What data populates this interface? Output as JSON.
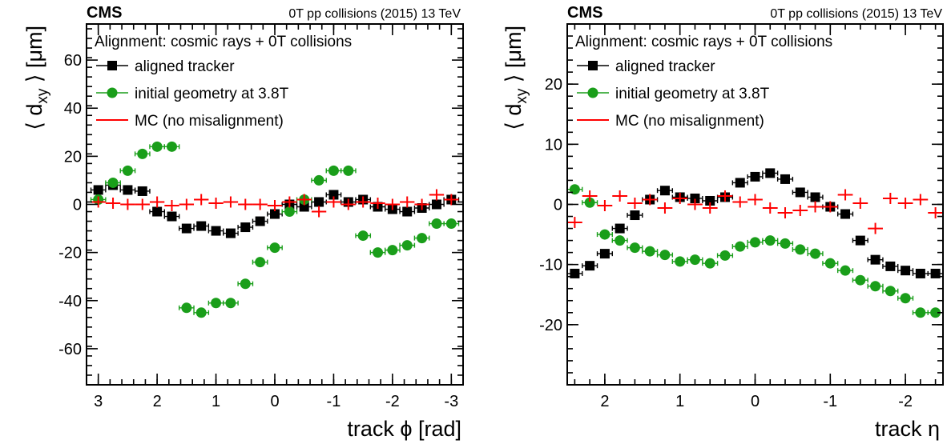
{
  "chart_data": [
    {
      "type": "scatter",
      "experiment": "CMS",
      "header": "0T pp collisions (2015) 13 TeV",
      "legend_title": "Alignment: cosmic rays + 0T collisions",
      "xlabel": "track ϕ [rad]",
      "ylabel": "⟨ d",
      "ylabel_sub": "xy",
      "ylabel_suffix": " ⟩ [μm]",
      "xlim": [
        3.2,
        -3.2
      ],
      "ylim": [
        -75,
        75
      ],
      "xticks": [
        3,
        2,
        1,
        0,
        -1,
        -2,
        -3
      ],
      "xtick_labels": [
        "3",
        "2",
        "1",
        "0",
        "-1",
        "-2",
        "-3"
      ],
      "yticks": [
        -60,
        -40,
        -20,
        0,
        20,
        40,
        60
      ],
      "ytick_labels": [
        "-60",
        "-40",
        "-20",
        "0",
        "20",
        "40",
        "60"
      ],
      "legend_position": "top-left",
      "series": [
        {
          "name": "aligned tracker",
          "color": "#000000",
          "marker": "square",
          "x": [
            3.0,
            2.75,
            2.5,
            2.25,
            2.0,
            1.75,
            1.5,
            1.25,
            1.0,
            0.75,
            0.5,
            0.25,
            0.0,
            -0.25,
            -0.5,
            -0.75,
            -1.0,
            -1.25,
            -1.5,
            -1.75,
            -2.0,
            -2.25,
            -2.5,
            -2.75,
            -3.0
          ],
          "y": [
            6,
            8,
            6,
            5.5,
            -3,
            -5,
            -10,
            -9,
            -11,
            -12,
            -9.5,
            -7,
            -4,
            0,
            -1,
            1,
            4,
            1,
            2,
            -1,
            -2,
            -3,
            -1.5,
            0,
            2
          ]
        },
        {
          "name": "initial geometry at 3.8T",
          "color": "#1a9e1a",
          "marker": "circle",
          "x": [
            3.0,
            2.75,
            2.5,
            2.25,
            2.0,
            1.75,
            1.5,
            1.25,
            1.0,
            0.75,
            0.5,
            0.25,
            0.0,
            -0.25,
            -0.5,
            -0.75,
            -1.0,
            -1.25,
            -1.5,
            -1.75,
            -2.0,
            -2.25,
            -2.5,
            -2.75,
            -3.0
          ],
          "y": [
            2,
            9,
            14,
            21,
            24,
            24,
            -43,
            -45,
            -41,
            -41,
            -33,
            -24,
            -18,
            -3,
            2,
            10,
            14,
            14,
            -13,
            -20,
            -19,
            -17,
            -14,
            -8,
            -8
          ]
        },
        {
          "name": "MC (no misalignment)",
          "color": "#ff0000",
          "marker": "cross",
          "x": [
            3.0,
            2.75,
            2.5,
            2.25,
            2.0,
            1.75,
            1.5,
            1.25,
            1.0,
            0.75,
            0.5,
            0.25,
            0.0,
            -0.25,
            -0.5,
            -0.75,
            -1.0,
            -1.25,
            -1.5,
            -1.75,
            -2.0,
            -2.25,
            -2.5,
            -2.75,
            -3.0
          ],
          "y": [
            1,
            0.5,
            0,
            0,
            1,
            -0.5,
            0,
            2,
            0.5,
            1,
            0,
            0,
            -0.5,
            1,
            2,
            -3,
            1,
            0,
            1,
            0.5,
            0,
            1,
            0,
            4,
            2
          ]
        }
      ]
    },
    {
      "type": "scatter",
      "experiment": "CMS",
      "header": "0T pp collisions (2015) 13 TeV",
      "legend_title": "Alignment: cosmic rays + 0T collisions",
      "xlabel": "track η",
      "ylabel": "⟨ d",
      "ylabel_sub": "xy",
      "ylabel_suffix": " ⟩ [μm]",
      "xlim": [
        2.5,
        -2.5
      ],
      "ylim": [
        -30,
        30
      ],
      "xticks": [
        2,
        1,
        0,
        -1,
        -2
      ],
      "xtick_labels": [
        "2",
        "1",
        "0",
        "-1",
        "-2"
      ],
      "yticks": [
        -20,
        -10,
        0,
        10,
        20
      ],
      "ytick_labels": [
        "-20",
        "-10",
        "0",
        "10",
        "20"
      ],
      "legend_position": "top-left",
      "series": [
        {
          "name": "aligned tracker",
          "color": "#000000",
          "marker": "square",
          "x": [
            2.4,
            2.2,
            2.0,
            1.8,
            1.6,
            1.4,
            1.2,
            1.0,
            0.8,
            0.6,
            0.4,
            0.2,
            0.0,
            -0.2,
            -0.4,
            -0.6,
            -0.8,
            -1.0,
            -1.2,
            -1.4,
            -1.6,
            -1.8,
            -2.0,
            -2.2,
            -2.4
          ],
          "y": [
            -11.5,
            -10.2,
            -8.2,
            -4,
            -1.8,
            0.8,
            2.3,
            1.2,
            1.0,
            0.6,
            1.2,
            3.6,
            4.6,
            5.2,
            4.2,
            2.0,
            1.2,
            -0.4,
            -1.6,
            -6.0,
            -9.2,
            -10.3,
            -11.0,
            -11.5,
            -11.5
          ]
        },
        {
          "name": "initial geometry at 3.8T",
          "color": "#1a9e1a",
          "marker": "circle",
          "x": [
            2.4,
            2.2,
            2.0,
            1.8,
            1.6,
            1.4,
            1.2,
            1.0,
            0.8,
            0.6,
            0.4,
            0.2,
            0.0,
            -0.2,
            -0.4,
            -0.6,
            -0.8,
            -1.0,
            -1.2,
            -1.4,
            -1.6,
            -1.8,
            -2.0,
            -2.2,
            -2.4
          ],
          "y": [
            2.5,
            0.3,
            -5,
            -6,
            -7.2,
            -7.8,
            -8.4,
            -9.5,
            -9.2,
            -9.8,
            -8.5,
            -7.0,
            -6.3,
            -6.0,
            -6.5,
            -7.5,
            -8.2,
            -9.8,
            -11,
            -12.6,
            -13.6,
            -14.4,
            -15.6,
            -18.0,
            -18.0
          ]
        },
        {
          "name": "MC (no misalignment)",
          "color": "#ff0000",
          "marker": "cross",
          "x": [
            2.4,
            2.2,
            2.0,
            1.8,
            1.6,
            1.4,
            1.2,
            1.0,
            0.8,
            0.6,
            0.4,
            0.2,
            0.0,
            -0.2,
            -0.4,
            -0.6,
            -0.8,
            -1.0,
            -1.2,
            -1.4,
            -1.6,
            -1.8,
            -2.0,
            -2.2,
            -2.4
          ],
          "y": [
            -3,
            1.4,
            -0.2,
            1.4,
            0.2,
            0.8,
            -0.6,
            1.0,
            0,
            -0.6,
            1.4,
            0.4,
            0.8,
            -0.6,
            -1.4,
            -1.0,
            -0.4,
            -0.4,
            1.6,
            0.2,
            -4.0,
            1.0,
            0.2,
            0.8,
            -1.4
          ]
        }
      ]
    }
  ]
}
